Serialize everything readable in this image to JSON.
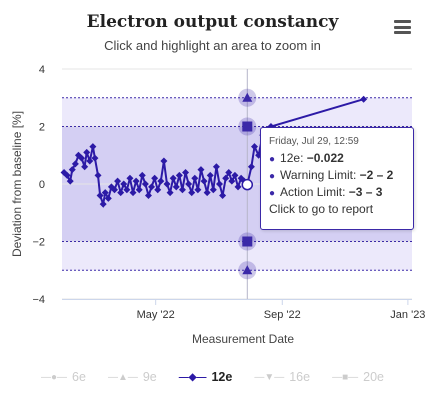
{
  "chart_data": {
    "type": "line",
    "title": "Electron output constancy",
    "subtitle": "Click and highlight an area to zoom in",
    "xlabel": "Measurement Date",
    "ylabel": "Deviation from baseline [%]",
    "ylim": [
      -4,
      4
    ],
    "xlim": [
      "2022-01-30",
      "2023-01-05"
    ],
    "y_ticks": [
      {
        "value": 4,
        "label": "4"
      },
      {
        "value": 2,
        "label": "2"
      },
      {
        "value": 0,
        "label": "0"
      },
      {
        "value": -2,
        "label": "−2"
      },
      {
        "value": -4,
        "label": "−4"
      }
    ],
    "x_ticks": [
      {
        "date": "2022-05-01",
        "label": "May '22"
      },
      {
        "date": "2022-09-01",
        "label": "Sep '22"
      },
      {
        "date": "2023-01-01",
        "label": "Jan '23"
      }
    ],
    "bands": {
      "action_limit": [
        -3,
        3
      ],
      "warning_limit": [
        -2,
        2
      ]
    },
    "series": [
      {
        "name": "6e",
        "visible": false
      },
      {
        "name": "9e",
        "visible": false
      },
      {
        "name": "12e",
        "visible": true,
        "color": "#2c1aa6",
        "points": [
          [
            "2022-02-01",
            0.4
          ],
          [
            "2022-02-04",
            0.3
          ],
          [
            "2022-02-07",
            0.1
          ],
          [
            "2022-02-09",
            0.5
          ],
          [
            "2022-02-12",
            0.7
          ],
          [
            "2022-02-15",
            1.0
          ],
          [
            "2022-02-18",
            0.9
          ],
          [
            "2022-02-21",
            0.6
          ],
          [
            "2022-02-23",
            1.1
          ],
          [
            "2022-02-26",
            0.8
          ],
          [
            "2022-03-01",
            1.3
          ],
          [
            "2022-03-03",
            0.9
          ],
          [
            "2022-03-06",
            0.3
          ],
          [
            "2022-03-08",
            -0.4
          ],
          [
            "2022-03-11",
            -0.7
          ],
          [
            "2022-03-13",
            -0.3
          ],
          [
            "2022-03-16",
            -0.5
          ],
          [
            "2022-03-19",
            -0.1
          ],
          [
            "2022-03-22",
            -0.2
          ],
          [
            "2022-03-25",
            0.1
          ],
          [
            "2022-03-28",
            -0.3
          ],
          [
            "2022-03-31",
            0.0
          ],
          [
            "2022-04-03",
            -0.2
          ],
          [
            "2022-04-06",
            0.2
          ],
          [
            "2022-04-09",
            -0.3
          ],
          [
            "2022-04-12",
            0.1
          ],
          [
            "2022-04-15",
            -0.2
          ],
          [
            "2022-04-18",
            0.3
          ],
          [
            "2022-04-21",
            0.0
          ],
          [
            "2022-04-24",
            -0.4
          ],
          [
            "2022-04-27",
            -0.1
          ],
          [
            "2022-04-30",
            0.2
          ],
          [
            "2022-05-03",
            -0.2
          ],
          [
            "2022-05-06",
            0.1
          ],
          [
            "2022-05-09",
            0.8
          ],
          [
            "2022-05-12",
            0.0
          ],
          [
            "2022-05-15",
            -0.3
          ],
          [
            "2022-05-18",
            0.2
          ],
          [
            "2022-05-21",
            -0.1
          ],
          [
            "2022-05-24",
            0.3
          ],
          [
            "2022-05-27",
            -0.2
          ],
          [
            "2022-05-30",
            0.4
          ],
          [
            "2022-06-02",
            0.0
          ],
          [
            "2022-06-05",
            -0.3
          ],
          [
            "2022-06-08",
            0.2
          ],
          [
            "2022-06-11",
            -0.2
          ],
          [
            "2022-06-14",
            0.5
          ],
          [
            "2022-06-17",
            0.1
          ],
          [
            "2022-06-20",
            -0.3
          ],
          [
            "2022-06-23",
            0.3
          ],
          [
            "2022-06-26",
            -0.2
          ],
          [
            "2022-06-29",
            0.6
          ],
          [
            "2022-07-02",
            0.0
          ],
          [
            "2022-07-05",
            -0.4
          ],
          [
            "2022-07-08",
            0.2
          ],
          [
            "2022-07-11",
            0.4
          ],
          [
            "2022-07-14",
            0.1
          ],
          [
            "2022-07-17",
            0.3
          ],
          [
            "2022-07-20",
            -0.1
          ],
          [
            "2022-07-23",
            0.2
          ],
          [
            "2022-07-26",
            0.1
          ],
          [
            "2022-07-29",
            -0.022
          ],
          [
            "2022-08-02",
            0.6
          ],
          [
            "2022-08-05",
            1.3
          ],
          [
            "2022-08-09",
            1.0
          ],
          [
            "2022-08-13",
            1.7
          ],
          [
            "2022-08-17",
            1.4
          ],
          [
            "2022-08-21",
            2.0
          ],
          [
            "2022-11-19",
            2.95
          ]
        ]
      },
      {
        "name": "16e",
        "visible": false
      },
      {
        "name": "20e",
        "visible": false
      }
    ],
    "hovered_point": {
      "date": "2022-07-29",
      "value": -0.022
    },
    "grid": "horizontal",
    "legend": "bottom"
  },
  "tooltip": {
    "date": "Friday, Jul 29, 12:59",
    "series_label": "12e:",
    "series_value": "−0.022",
    "warning_label": "Warning Limit:",
    "warning_value": "−2 – 2",
    "action_label": "Action Limit:",
    "action_value": "−3 – 3",
    "footer": "Click to go to report"
  },
  "colors": {
    "series": "#2c1aa6",
    "action_band": "#ece9fb",
    "warning_band": "#d4cff3",
    "limit_line": "#3b29a8",
    "hidden": "#cccccc"
  },
  "menu_icon": "hamburger-menu-icon"
}
